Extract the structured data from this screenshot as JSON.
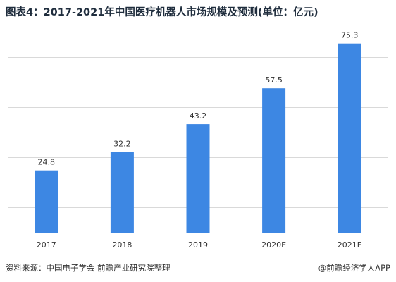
{
  "title": "图表4：2017-2021年中国医疗机器人市场规模及预测(单位：亿元)",
  "footer": {
    "source": "资料来源：中国电子学会 前瞻产业研究院整理",
    "brand": "@前瞻经济学人APP"
  },
  "colors": {
    "bar": "#3d87e3",
    "grid": "#d9d9d9",
    "axis": "#bfbfbf"
  },
  "chart_data": {
    "type": "bar",
    "categories": [
      "2017",
      "2018",
      "2019",
      "2020E",
      "2021E"
    ],
    "values": [
      24.8,
      32.2,
      43.2,
      57.5,
      75.3
    ],
    "ylim": [
      0,
      80
    ],
    "gridlines": [
      0,
      10,
      20,
      30,
      40,
      50,
      60,
      70,
      80
    ],
    "grid": true,
    "legend": "none"
  }
}
